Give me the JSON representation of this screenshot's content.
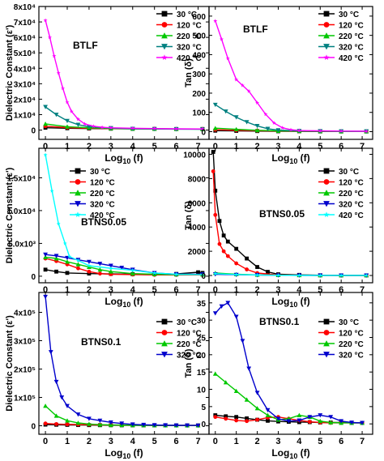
{
  "colors": {
    "30": "#000000",
    "120": "#ff0000",
    "220": "#00c800",
    "320": "#0000cc",
    "420": "#ff00ff",
    "420_btns": "#00ffff",
    "320_btlf": "#008080"
  },
  "chart_data": [
    {
      "type": "line",
      "panel": "dielectric-btlf",
      "sample_label": "BTLF",
      "ylabel": "Dielectric Constant (ε')",
      "xlabel": "Log10 (f)",
      "xlim": [
        -0.3,
        7.5
      ],
      "ylim": [
        -6000,
        80000
      ],
      "xticks": [
        "0",
        "1",
        "2",
        "3",
        "4",
        "5",
        "6",
        "7"
      ],
      "yticks": [
        "0",
        "1x10⁴",
        "2x10⁴",
        "3x10⁴",
        "4x10⁴",
        "5x10⁴",
        "6x10⁴",
        "7x10⁴",
        "8x10⁴"
      ],
      "legend": "top-right",
      "series": [
        {
          "name": "30 °C",
          "marker": "square",
          "x": [
            0,
            1,
            2,
            3,
            4,
            5,
            6,
            7.2
          ],
          "values": [
            1500,
            1200,
            1000,
            900,
            800,
            750,
            700,
            700
          ]
        },
        {
          "name": "120 °C",
          "marker": "circle",
          "x": [
            0,
            1,
            2,
            3,
            4,
            5,
            6,
            7.2
          ],
          "values": [
            2500,
            1600,
            1200,
            1000,
            900,
            800,
            700,
            650
          ]
        },
        {
          "name": "220 °C",
          "marker": "triangle-up",
          "x": [
            0,
            1,
            2,
            3,
            4,
            5,
            6,
            7.2
          ],
          "values": [
            4000,
            2200,
            1500,
            1100,
            900,
            800,
            700,
            600
          ]
        },
        {
          "name": "320 °C",
          "marker": "triangle-down",
          "x": [
            0,
            0.5,
            1,
            1.5,
            2,
            3,
            4,
            5,
            6,
            7.2
          ],
          "values": [
            15000,
            10000,
            6000,
            3500,
            2200,
            1300,
            900,
            700,
            600,
            500
          ]
        },
        {
          "name": "420 °C",
          "marker": "star",
          "x": [
            0,
            0.2,
            0.4,
            0.6,
            0.8,
            1.0,
            1.2,
            1.5,
            1.8,
            2.2,
            2.6,
            3.0,
            4,
            5,
            6,
            7.2
          ],
          "values": [
            71000,
            60000,
            48000,
            37000,
            27000,
            18000,
            12000,
            7000,
            4000,
            2500,
            1800,
            1500,
            1200,
            1000,
            800,
            700
          ]
        }
      ]
    },
    {
      "type": "line",
      "panel": "tan-btlf",
      "sample_label": "BTLF",
      "ylabel": "Tan (δ)",
      "xlabel": "Log10 (f)",
      "xlim": [
        -0.3,
        7.5
      ],
      "ylim": [
        -40,
        650
      ],
      "xticks": [
        "0",
        "1",
        "2",
        "3",
        "4",
        "5",
        "6",
        "7"
      ],
      "yticks": [
        "0",
        "100",
        "200",
        "300",
        "400",
        "500",
        "600"
      ],
      "legend": "top-right",
      "series": [
        {
          "name": "30 °C",
          "marker": "square",
          "x": [
            0,
            1,
            2,
            3,
            4,
            5,
            6,
            7.2
          ],
          "values": [
            5,
            4,
            3,
            2,
            2,
            1,
            1,
            1
          ]
        },
        {
          "name": "120 °C",
          "marker": "circle",
          "x": [
            0,
            1,
            2,
            3,
            4,
            5,
            6,
            7.2
          ],
          "values": [
            10,
            7,
            5,
            3,
            2,
            2,
            1,
            1
          ]
        },
        {
          "name": "220 °C",
          "marker": "triangle-up",
          "x": [
            0,
            1,
            2,
            3,
            4,
            5,
            6,
            7.2
          ],
          "values": [
            18,
            12,
            7,
            4,
            3,
            2,
            1,
            1
          ]
        },
        {
          "name": "320 °C",
          "marker": "triangle-down",
          "x": [
            0,
            0.5,
            1,
            1.5,
            2,
            2.5,
            3,
            4,
            5,
            6,
            7.2
          ],
          "values": [
            140,
            105,
            75,
            50,
            30,
            15,
            8,
            4,
            3,
            2,
            2
          ]
        },
        {
          "name": "420 °C",
          "marker": "star",
          "x": [
            0,
            0.3,
            0.6,
            1.0,
            1.3,
            1.6,
            2.0,
            2.4,
            2.8,
            3.2,
            3.6,
            4,
            5,
            6,
            7.2
          ],
          "values": [
            575,
            480,
            380,
            270,
            240,
            210,
            150,
            90,
            45,
            20,
            10,
            6,
            4,
            3,
            2
          ]
        }
      ]
    },
    {
      "type": "line",
      "panel": "dielectric-btns005",
      "sample_label": "BTNS0.05",
      "ylabel": "Dielectric Constant (ε')",
      "xlabel": "Log10 (f)",
      "xlim": [
        -0.3,
        7.5
      ],
      "ylim": [
        -1000,
        19500
      ],
      "xticks": [
        "0",
        "1",
        "2",
        "3",
        "4",
        "5",
        "6",
        "7"
      ],
      "yticks": [
        "0",
        "5.0x10³",
        "1.0x10⁴",
        "1.5x10⁴"
      ],
      "legend": "top-right",
      "series": [
        {
          "name": "30 °C",
          "marker": "square",
          "x": [
            0,
            0.5,
            1,
            2,
            3,
            4,
            5,
            6,
            7,
            7.2
          ],
          "values": [
            1000,
            700,
            500,
            400,
            350,
            300,
            300,
            350,
            600,
            500
          ]
        },
        {
          "name": "120 °C",
          "marker": "circle",
          "x": [
            0,
            0.5,
            1,
            1.5,
            2,
            2.5,
            3,
            4,
            5,
            6,
            7.2
          ],
          "values": [
            2700,
            2300,
            1800,
            1200,
            700,
            400,
            300,
            250,
            200,
            200,
            200
          ]
        },
        {
          "name": "220 °C",
          "marker": "triangle-up",
          "x": [
            0,
            0.5,
            1,
            1.5,
            2,
            2.5,
            3,
            4,
            5,
            6,
            7.2
          ],
          "values": [
            2900,
            2700,
            2200,
            1800,
            1400,
            1000,
            700,
            400,
            300,
            250,
            250
          ]
        },
        {
          "name": "320 °C",
          "marker": "triangle-down",
          "x": [
            0,
            0.5,
            1,
            1.5,
            2,
            2.5,
            3,
            3.5,
            4,
            5,
            6,
            7.2
          ],
          "values": [
            3300,
            3100,
            2800,
            2500,
            2200,
            1900,
            1600,
            1300,
            1000,
            500,
            300,
            300
          ]
        },
        {
          "name": "420 °C",
          "marker": "star",
          "x": [
            0,
            0.3,
            0.6,
            0.9,
            1.1,
            1.5,
            2,
            3,
            4,
            5,
            6,
            7.2
          ],
          "values": [
            18500,
            13000,
            8000,
            5000,
            3000,
            2400,
            1600,
            1200,
            900,
            500,
            300,
            250
          ]
        }
      ]
    },
    {
      "type": "line",
      "panel": "tan-btns005",
      "sample_label": "BTNS0.05",
      "ylabel": "Tan (δ)",
      "xlabel": "Log10 (f)",
      "xlim": [
        -0.3,
        7.5
      ],
      "ylim": [
        -600,
        10500
      ],
      "xticks": [
        "0",
        "1",
        "2",
        "3",
        "4",
        "5",
        "6",
        "7"
      ],
      "yticks": [
        "0",
        "2000",
        "4000",
        "6000",
        "8000",
        "10000"
      ],
      "legend": "top-right",
      "series": [
        {
          "name": "30 °C",
          "marker": "square",
          "x": [
            -0.1,
            0,
            0.2,
            0.4,
            0.6,
            1.0,
            1.5,
            2.0,
            2.5,
            3,
            4,
            5,
            6,
            7.2
          ],
          "values": [
            10200,
            7000,
            4500,
            3300,
            2800,
            2200,
            1400,
            700,
            300,
            100,
            50,
            20,
            10,
            10
          ]
        },
        {
          "name": "120 °C",
          "marker": "circle",
          "x": [
            -0.1,
            0,
            0.2,
            0.4,
            0.6,
            1.0,
            1.5,
            2.0,
            3,
            4,
            5,
            6,
            7.2
          ],
          "values": [
            8600,
            5000,
            2600,
            2000,
            1600,
            1000,
            500,
            200,
            50,
            20,
            10,
            10,
            10
          ]
        },
        {
          "name": "220 °C",
          "marker": "triangle-up",
          "x": [
            0,
            1,
            2,
            3,
            4,
            5,
            6,
            7.2
          ],
          "values": [
            200,
            100,
            50,
            30,
            20,
            10,
            10,
            10
          ]
        },
        {
          "name": "320 °C",
          "marker": "triangle-down",
          "x": [
            0,
            1,
            2,
            3,
            4,
            5,
            6,
            7.2
          ],
          "values": [
            100,
            60,
            40,
            20,
            10,
            10,
            10,
            10
          ]
        },
        {
          "name": "420 °C",
          "marker": "star",
          "x": [
            0,
            1,
            2,
            3,
            4,
            5,
            6,
            7.2
          ],
          "values": [
            150,
            80,
            40,
            20,
            10,
            10,
            10,
            10
          ]
        }
      ]
    },
    {
      "type": "line",
      "panel": "dielectric-btns01",
      "sample_label": "BTNS0.1",
      "ylabel": "Dielectric Constant (ε')",
      "xlabel": "Log10 (f)",
      "xlim": [
        -0.3,
        7.5
      ],
      "ylim": [
        -30000,
        470000
      ],
      "xticks": [
        "0",
        "1",
        "2",
        "3",
        "4",
        "5",
        "6",
        "7"
      ],
      "yticks": [
        "0",
        "1x10⁵",
        "2x10⁵",
        "3x10⁵",
        "4x10⁵"
      ],
      "legend": "top-right",
      "series": [
        {
          "name": "30 °C",
          "marker": "square",
          "x": [
            0,
            0.5,
            1,
            1.5,
            2,
            2.5,
            3,
            3.5,
            4,
            4.5,
            5,
            5.5,
            6,
            6.5,
            7
          ],
          "values": [
            4000,
            3500,
            3000,
            2500,
            2200,
            2000,
            1800,
            1600,
            1500,
            1400,
            1300,
            1200,
            1100,
            1000,
            1000
          ]
        },
        {
          "name": "120 °C",
          "marker": "circle",
          "x": [
            0,
            0.5,
            1,
            1.5,
            2,
            2.5,
            3,
            3.5,
            4,
            4.5,
            5,
            5.5,
            6,
            6.5,
            7
          ],
          "values": [
            8000,
            6000,
            5000,
            4200,
            3600,
            3000,
            2600,
            2200,
            1900,
            1600,
            1400,
            1200,
            1100,
            1000,
            1000
          ]
        },
        {
          "name": "220 °C",
          "marker": "triangle-up",
          "x": [
            0,
            0.5,
            1,
            1.5,
            2,
            2.5,
            3,
            3.5,
            4,
            4.5,
            5,
            5.5,
            6,
            6.5,
            7
          ],
          "values": [
            70000,
            35000,
            18000,
            10000,
            6000,
            4000,
            3000,
            2500,
            2000,
            1800,
            1500,
            1300,
            1200,
            1100,
            1000
          ]
        },
        {
          "name": "320 °C",
          "marker": "triangle-down",
          "x": [
            0,
            0.25,
            0.5,
            0.75,
            1,
            1.5,
            2,
            2.5,
            3,
            3.5,
            4,
            4.5,
            5,
            5.5,
            6,
            6.5,
            7
          ],
          "values": [
            455000,
            260000,
            155000,
            100000,
            70000,
            40000,
            25000,
            18000,
            12000,
            8000,
            5000,
            3500,
            2500,
            2000,
            1500,
            1200,
            1000
          ]
        }
      ]
    },
    {
      "type": "line",
      "panel": "tan-btns01",
      "sample_label": "BTNS0.1",
      "ylabel": "Tan (δ)",
      "xlabel": "Log10 (f)",
      "xlim": [
        -0.3,
        7.5
      ],
      "ylim": [
        -3,
        38
      ],
      "xticks": [
        "0",
        "1",
        "2",
        "3",
        "4",
        "5",
        "6",
        "7"
      ],
      "yticks": [
        "0",
        "5",
        "10",
        "15",
        "20",
        "25",
        "30",
        "35"
      ],
      "legend": "right",
      "series": [
        {
          "name": "30 °C",
          "marker": "square",
          "x": [
            0,
            0.5,
            1,
            1.5,
            2,
            2.5,
            3,
            3.5,
            4,
            4.5,
            5,
            5.5,
            6,
            6.5,
            7
          ],
          "values": [
            2.5,
            2.2,
            2.0,
            1.6,
            1.2,
            0.9,
            0.7,
            0.6,
            0.5,
            0.5,
            0.4,
            0.4,
            0.4,
            0.3,
            0.3
          ]
        },
        {
          "name": "120 °C",
          "marker": "circle",
          "x": [
            0,
            0.5,
            1,
            1.5,
            2,
            2.5,
            3,
            3.5,
            4,
            4.5,
            5,
            5.5,
            6,
            6.5,
            7
          ],
          "values": [
            2.0,
            1.5,
            1.0,
            0.8,
            1.2,
            1.8,
            2.0,
            1.5,
            1.0,
            0.6,
            0.4,
            0.3,
            0.3,
            0.3,
            0.3
          ]
        },
        {
          "name": "220 °C",
          "marker": "triangle-up",
          "x": [
            0,
            0.5,
            1,
            1.5,
            2,
            2.5,
            3,
            3.5,
            4,
            4.5,
            5,
            5.5,
            6,
            6.5,
            7
          ],
          "values": [
            14.5,
            12.0,
            9.5,
            7.0,
            4.5,
            2.5,
            1.2,
            1.5,
            2.5,
            2.0,
            0.8,
            0.4,
            0.3,
            0.3,
            0.3
          ]
        },
        {
          "name": "320 °C",
          "marker": "triangle-down",
          "x": [
            0,
            0.3,
            0.6,
            1.0,
            1.3,
            1.6,
            2.0,
            2.5,
            3,
            3.5,
            4,
            4.5,
            5,
            5.5,
            6,
            6.5,
            7
          ],
          "values": [
            32,
            34,
            35,
            31,
            24,
            16,
            9,
            4,
            1.5,
            0.8,
            1.0,
            2.0,
            2.5,
            2.0,
            0.8,
            0.4,
            0.3
          ]
        }
      ]
    }
  ]
}
